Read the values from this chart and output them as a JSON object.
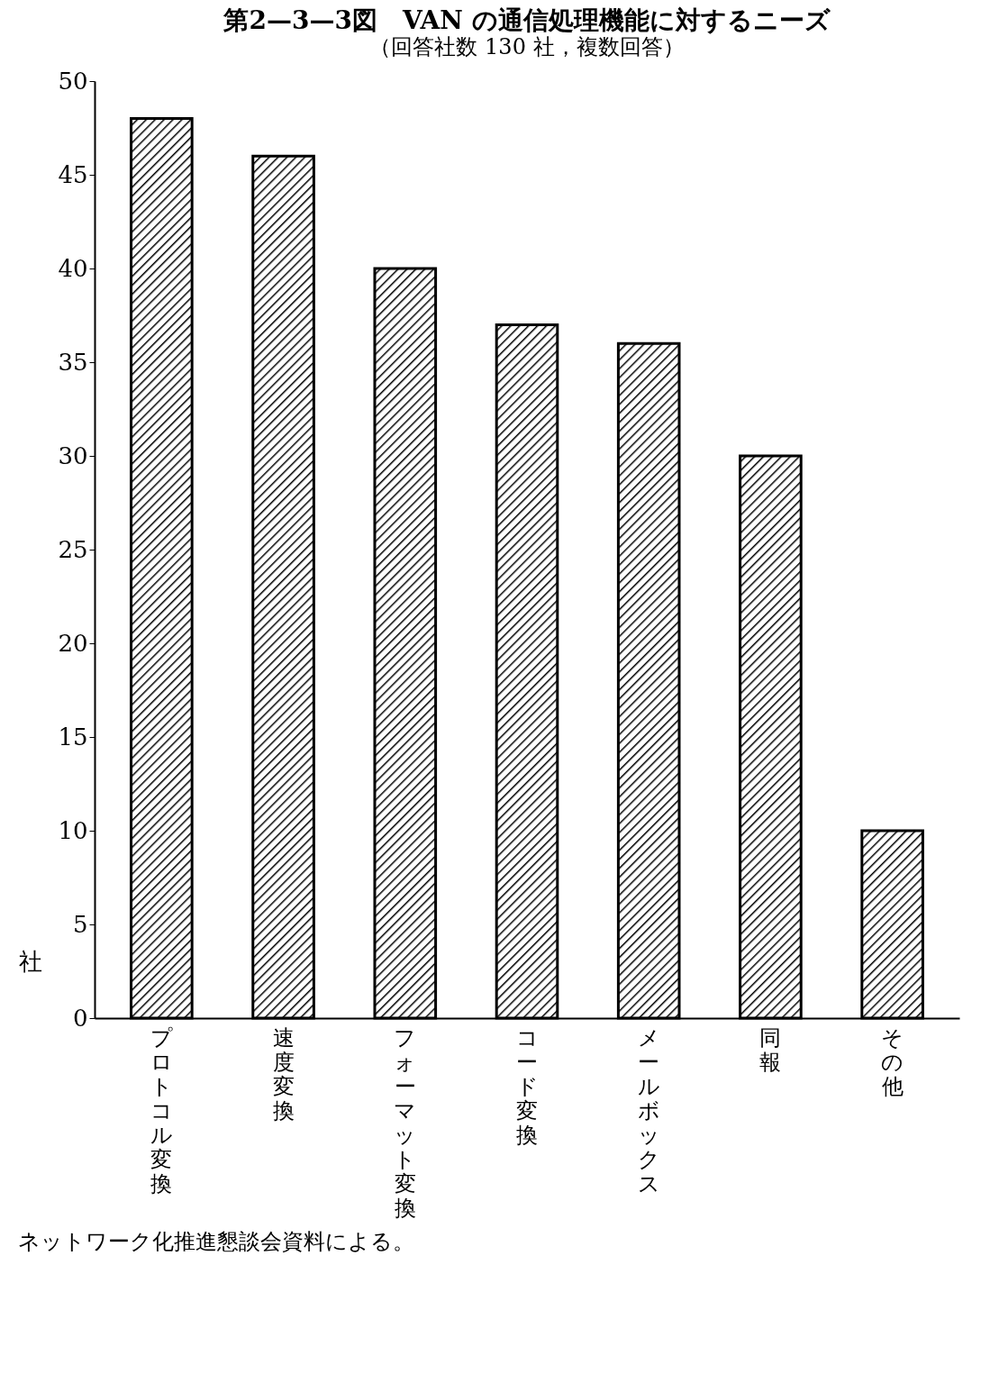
{
  "chart_data": {
    "type": "bar",
    "title": "第2—3—3図　VAN の通信処理機能に対するニーズ",
    "subtitle": "（回答社数 130 社，複数回答）",
    "ylabel": "社",
    "categories": [
      "プロトコル変換",
      "速度変換",
      "フォーマット変換",
      "コード変換",
      "メールボックス",
      "同報",
      "その他"
    ],
    "values": [
      48,
      46,
      40,
      37,
      36,
      30,
      10
    ],
    "color": "#000000",
    "ylim": [
      0,
      50
    ],
    "yticks": [
      0,
      5,
      10,
      15,
      20,
      25,
      30,
      35,
      40,
      45,
      50
    ],
    "annotations": [
      "ネットワーク化推進懇談会資料による。"
    ]
  }
}
